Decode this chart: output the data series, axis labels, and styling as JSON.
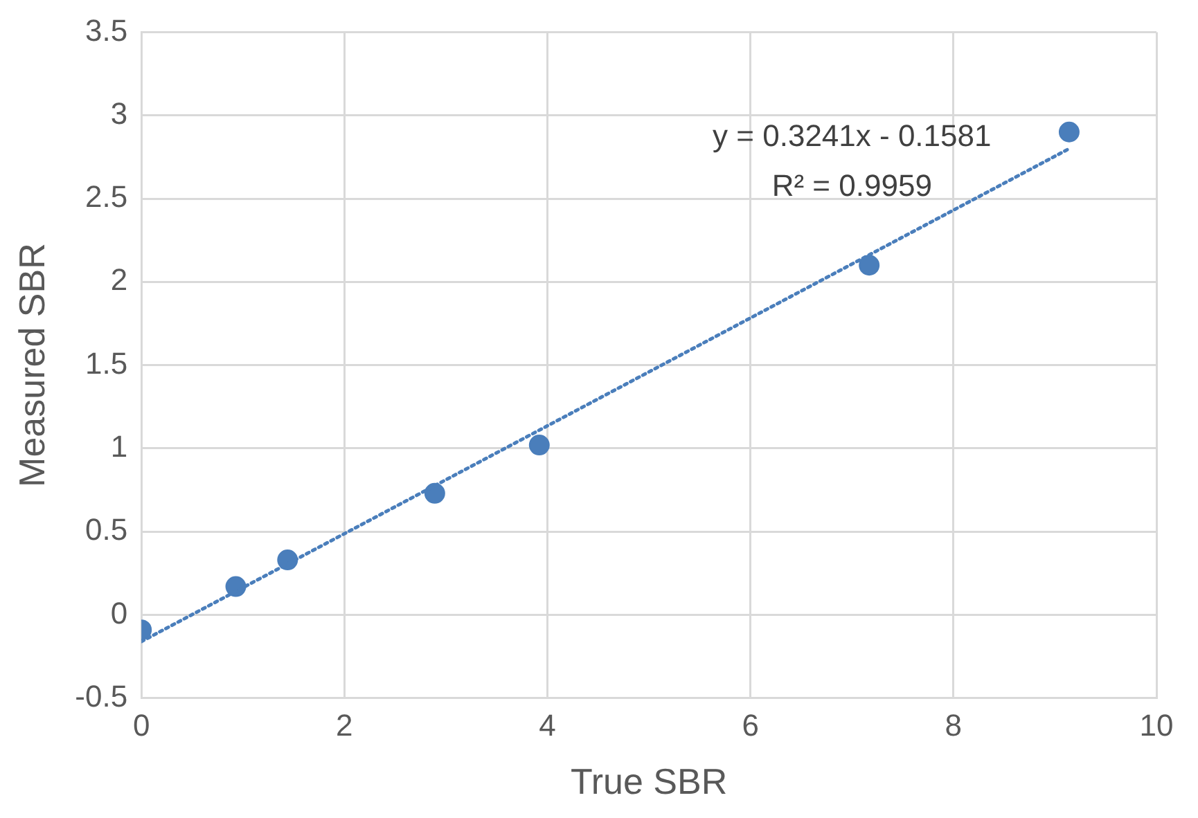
{
  "chart_data": {
    "type": "scatter",
    "xlabel": "True SBR",
    "ylabel": "Measured SBR",
    "series": [
      {
        "color": "#4a7ebb",
        "marker": "circle",
        "x": [
          0,
          0.93,
          1.44,
          2.89,
          3.92,
          7.17,
          9.14
        ],
        "values": [
          -0.09,
          0.17,
          0.33,
          0.73,
          1.02,
          2.1,
          2.9
        ]
      },
      {
        "type": "line",
        "color": "#4a7ebb",
        "line_style": "dotted",
        "marker": "none",
        "x": [
          0,
          9.14
        ],
        "values": [
          -0.16,
          2.8
        ]
      }
    ],
    "annotations": [
      "y = 0.3241x - 0.1581",
      "R² = 0.9959"
    ],
    "xlim": [
      0,
      10
    ],
    "xticks": [
      0,
      2,
      4,
      6,
      8,
      10
    ],
    "ylim": [
      -0.5,
      3.5
    ],
    "yticks": [
      -0.5,
      0,
      0.5,
      1,
      1.5,
      2,
      2.5,
      3,
      3.5
    ],
    "grid": true,
    "legend": false
  }
}
